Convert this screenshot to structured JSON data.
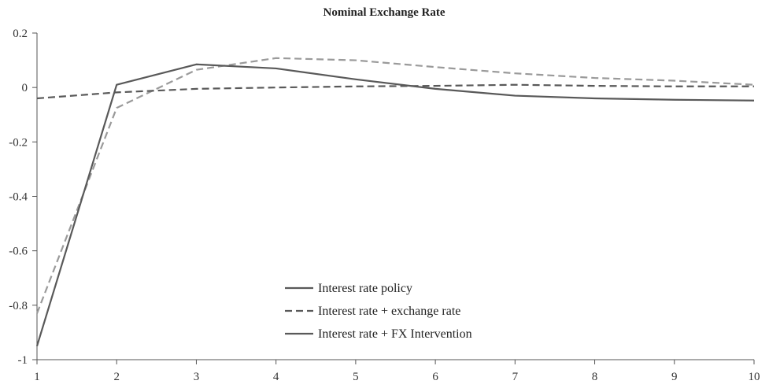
{
  "chart_data": {
    "type": "line",
    "title": "Nominal Exchange Rate",
    "xlabel": "",
    "ylabel": "",
    "x": [
      1,
      2,
      3,
      4,
      5,
      6,
      7,
      8,
      9,
      10
    ],
    "xticks": [
      "1",
      "2",
      "3",
      "4",
      "5",
      "6",
      "7",
      "8",
      "9",
      "10"
    ],
    "yticks": [
      "0.2",
      "0",
      "-0.2",
      "-0.4",
      "-0.6",
      "-0.8",
      "-1"
    ],
    "ylim": [
      -1,
      0.2
    ],
    "xlim": [
      1,
      10
    ],
    "grid": false,
    "legend_position": "bottom-center",
    "series": [
      {
        "name": "Interest rate policy",
        "style": "solid",
        "color": "#595959",
        "values": [
          -0.95,
          0.01,
          0.085,
          0.07,
          0.03,
          -0.005,
          -0.03,
          -0.04,
          -0.045,
          -0.048
        ]
      },
      {
        "name": "Interest rate + exchange rate",
        "style": "dashed",
        "color": "#595959",
        "values": [
          -0.04,
          -0.018,
          -0.005,
          0.0,
          0.004,
          0.006,
          0.01,
          0.006,
          0.004,
          0.004
        ]
      },
      {
        "name": "Interest rate + FX Intervention",
        "style": "solid",
        "color": "#595959",
        "values": [
          -0.95,
          0.01,
          0.085,
          0.07,
          0.03,
          -0.005,
          -0.03,
          -0.04,
          -0.045,
          -0.048
        ]
      }
    ],
    "unlabeled_series": [
      {
        "style": "dashed",
        "color": "#9a9a9a",
        "values": [
          -0.83,
          -0.075,
          0.065,
          0.108,
          0.1,
          0.075,
          0.052,
          0.035,
          0.025,
          0.01
        ]
      }
    ]
  }
}
